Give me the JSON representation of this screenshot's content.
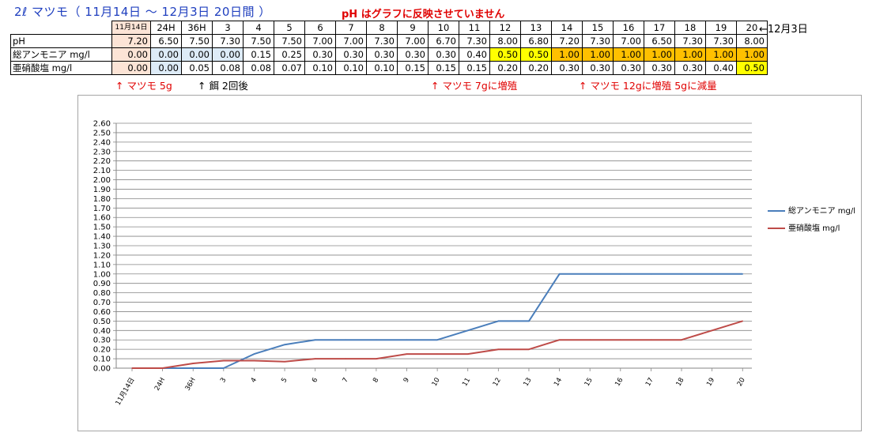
{
  "header": {
    "title": "2ℓ マツモ（ 11月14日 ～ 12月3日 20日間 ）",
    "note": "pH はグラフに反映させていません",
    "end_date": "←12月3日"
  },
  "table": {
    "columns": [
      "11月14日",
      "24H",
      "36H",
      "3",
      "4",
      "5",
      "6",
      "7",
      "8",
      "9",
      "10",
      "11",
      "12",
      "13",
      "14",
      "15",
      "16",
      "17",
      "18",
      "19",
      "20"
    ],
    "rows": [
      {
        "label": "pH",
        "values": [
          "7.20",
          "6.50",
          "7.50",
          "7.30",
          "7.50",
          "7.50",
          "7.00",
          "7.00",
          "7.30",
          "7.00",
          "6.70",
          "7.30",
          "8.00",
          "6.80",
          "7.20",
          "7.30",
          "7.00",
          "6.50",
          "7.30",
          "7.30",
          "8.00"
        ],
        "cell_colors": [
          "#fce4d6",
          "",
          "",
          "",
          "",
          "",
          "",
          "",
          "",
          "",
          "",
          "",
          "",
          "",
          "",
          "",
          "",
          "",
          "",
          "",
          ""
        ]
      },
      {
        "label": "総アンモニア mg/l",
        "values": [
          "0.00",
          "0.00",
          "0.00",
          "0.00",
          "0.15",
          "0.25",
          "0.30",
          "0.30",
          "0.30",
          "0.30",
          "0.30",
          "0.40",
          "0.50",
          "0.50",
          "1.00",
          "1.00",
          "1.00",
          "1.00",
          "1.00",
          "1.00",
          "1.00"
        ],
        "cell_colors": [
          "#fce4d6",
          "#ddebf7",
          "#ddebf7",
          "#ddebf7",
          "",
          "",
          "",
          "",
          "",
          "",
          "",
          "",
          "#ffff00",
          "#ffff00",
          "#ffc000",
          "#ffc000",
          "#ffc000",
          "#ffc000",
          "#ffc000",
          "#ffc000",
          "#ffc000"
        ]
      },
      {
        "label": "亜硝酸塩 mg/l",
        "values": [
          "0.00",
          "0.00",
          "0.05",
          "0.08",
          "0.08",
          "0.07",
          "0.10",
          "0.10",
          "0.10",
          "0.15",
          "0.15",
          "0.15",
          "0.20",
          "0.20",
          "0.30",
          "0.30",
          "0.30",
          "0.30",
          "0.30",
          "0.40",
          "0.50"
        ],
        "cell_colors": [
          "#fce4d6",
          "#ddebf7",
          "",
          "",
          "",
          "",
          "",
          "",
          "",
          "",
          "",
          "",
          "",
          "",
          "",
          "",
          "",
          "",
          "",
          "",
          "#ffff00"
        ]
      }
    ]
  },
  "annotations": [
    {
      "text": "↑ マツモ 5g",
      "color": "#e00000"
    },
    {
      "text": "↑ 餌 2回後",
      "color": "#000000"
    },
    {
      "text": "↑ マツモ 7gに増殖",
      "color": "#e00000"
    },
    {
      "text": "↑ マツモ 12gに増殖 5gに減量",
      "color": "#e00000"
    }
  ],
  "chart_data": {
    "type": "line",
    "title": "",
    "xlabel": "",
    "ylabel": "",
    "categories": [
      "11月14日",
      "24H",
      "36H",
      "3",
      "4",
      "5",
      "6",
      "7",
      "8",
      "9",
      "10",
      "11",
      "12",
      "13",
      "14",
      "15",
      "16",
      "17",
      "18",
      "19",
      "20"
    ],
    "ylim": [
      0,
      2.6
    ],
    "ytick_step": 0.1,
    "grid": true,
    "legend": "right",
    "series": [
      {
        "name": "総アンモニア mg/l",
        "color": "#4a7ebb",
        "values": [
          0,
          0,
          0,
          0,
          0.15,
          0.25,
          0.3,
          0.3,
          0.3,
          0.3,
          0.3,
          0.4,
          0.5,
          0.5,
          1,
          1,
          1,
          1,
          1,
          1,
          1
        ]
      },
      {
        "name": "亜硝酸塩 mg/l",
        "color": "#be4b48",
        "values": [
          0,
          0,
          0.05,
          0.08,
          0.08,
          0.07,
          0.1,
          0.1,
          0.1,
          0.15,
          0.15,
          0.15,
          0.2,
          0.2,
          0.3,
          0.3,
          0.3,
          0.3,
          0.3,
          0.4,
          0.5
        ]
      }
    ]
  }
}
